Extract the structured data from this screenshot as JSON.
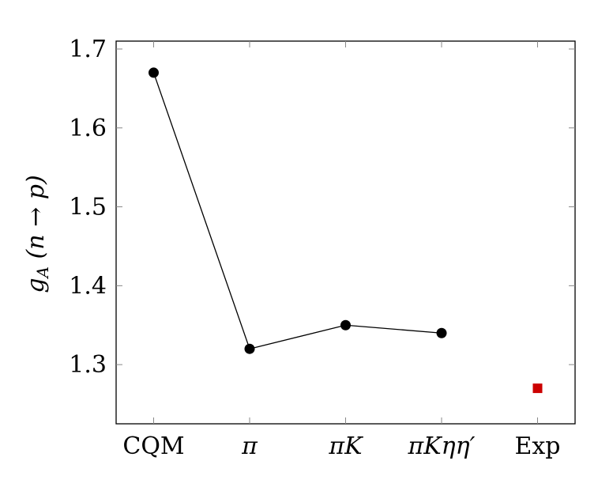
{
  "chart_data": {
    "type": "line",
    "categories": [
      "CQM",
      "π",
      "πK",
      "πKηη′",
      "Exp"
    ],
    "ylabel": "g_A (n → p)",
    "ylabel_parts": {
      "g": "g",
      "sub": "A",
      "rest": " (n → p)"
    },
    "ylim": [
      1.225,
      1.71
    ],
    "yticks": [
      1.3,
      1.4,
      1.5,
      1.6,
      1.7
    ],
    "ytick_labels": [
      "1.3",
      "1.4",
      "1.5",
      "1.6",
      "1.7"
    ],
    "grid": false,
    "series": [
      {
        "values": [
          1.67,
          1.32,
          1.35,
          1.34,
          null
        ],
        "color": "#000000",
        "marker": "circle"
      },
      {
        "values": [
          null,
          null,
          null,
          null,
          1.27
        ],
        "color": "#cc0000",
        "marker": "square"
      }
    ]
  }
}
